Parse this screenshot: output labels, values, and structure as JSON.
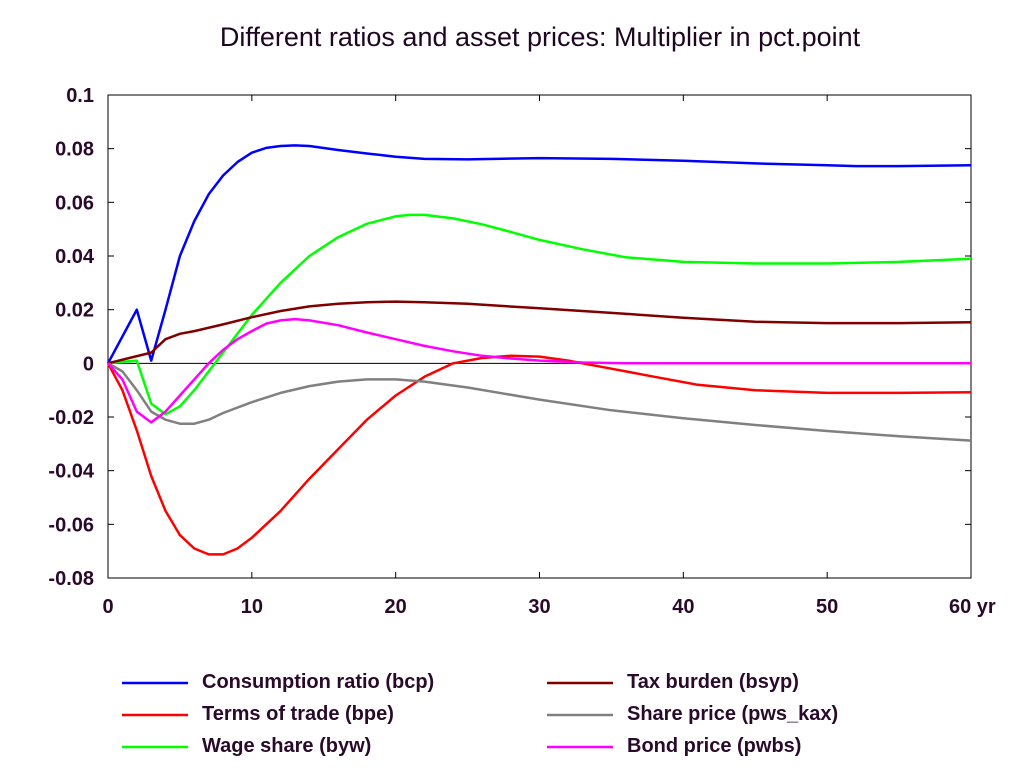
{
  "chart_data": {
    "type": "line",
    "title": "Different ratios and asset prices: Multiplier in pct.point",
    "xlabel": "",
    "ylabel": "",
    "x_unit": "yr",
    "xlim": [
      0,
      60
    ],
    "ylim": [
      -0.08,
      0.1
    ],
    "x_ticks": [
      0,
      10,
      20,
      30,
      40,
      50,
      60
    ],
    "x_tick_labels": [
      "0",
      "10",
      "20",
      "30",
      "40",
      "50",
      "60 yr"
    ],
    "y_ticks": [
      0.1,
      0.08,
      0.06,
      0.04,
      0.02,
      0,
      -0.02,
      -0.04,
      -0.06,
      -0.08
    ],
    "y_tick_labels": [
      "0.1",
      "0.08",
      "0.06",
      "0.04",
      "0.02",
      "0",
      "-0.02",
      "-0.04",
      "-0.06",
      "-0.08"
    ],
    "grid": false,
    "zero_line": true,
    "legend_position": "bottom",
    "series": [
      {
        "name": "Consumption ratio (bcp)",
        "color": "#0000ff",
        "points": [
          [
            0,
            0
          ],
          [
            2,
            0.02
          ],
          [
            3,
            0.001
          ],
          [
            4,
            0.02
          ],
          [
            5,
            0.04
          ],
          [
            6,
            0.053
          ],
          [
            7,
            0.063
          ],
          [
            8,
            0.07
          ],
          [
            9,
            0.075
          ],
          [
            10,
            0.0785
          ],
          [
            11,
            0.0803
          ],
          [
            12,
            0.081
          ],
          [
            13,
            0.0812
          ],
          [
            14,
            0.081
          ],
          [
            16,
            0.0795
          ],
          [
            18,
            0.0782
          ],
          [
            20,
            0.077
          ],
          [
            22,
            0.0762
          ],
          [
            25,
            0.076
          ],
          [
            30,
            0.0765
          ],
          [
            35,
            0.0762
          ],
          [
            40,
            0.0755
          ],
          [
            45,
            0.0745
          ],
          [
            50,
            0.0738
          ],
          [
            52,
            0.0735
          ],
          [
            55,
            0.0735
          ],
          [
            60,
            0.0738
          ]
        ]
      },
      {
        "name": "Terms of trade (bpe)",
        "color": "#ff0000",
        "points": [
          [
            0,
            0
          ],
          [
            1,
            -0.01
          ],
          [
            2,
            -0.025
          ],
          [
            3,
            -0.042
          ],
          [
            4,
            -0.055
          ],
          [
            5,
            -0.064
          ],
          [
            6,
            -0.069
          ],
          [
            7,
            -0.0712
          ],
          [
            8,
            -0.0712
          ],
          [
            9,
            -0.069
          ],
          [
            10,
            -0.065
          ],
          [
            12,
            -0.055
          ],
          [
            14,
            -0.043
          ],
          [
            16,
            -0.032
          ],
          [
            18,
            -0.021
          ],
          [
            20,
            -0.012
          ],
          [
            22,
            -0.005
          ],
          [
            24,
            0
          ],
          [
            26,
            0.002
          ],
          [
            28,
            0.0028
          ],
          [
            30,
            0.0025
          ],
          [
            32,
            0.001
          ],
          [
            35,
            -0.002
          ],
          [
            38,
            -0.005
          ],
          [
            41,
            -0.008
          ],
          [
            45,
            -0.01
          ],
          [
            50,
            -0.011
          ],
          [
            55,
            -0.011
          ],
          [
            60,
            -0.0108
          ]
        ]
      },
      {
        "name": "Wage share (byw)",
        "color": "#00ff00",
        "points": [
          [
            0,
            0
          ],
          [
            2,
            0.001
          ],
          [
            3,
            -0.015
          ],
          [
            4,
            -0.019
          ],
          [
            5,
            -0.016
          ],
          [
            6,
            -0.01
          ],
          [
            7,
            -0.003
          ],
          [
            8,
            0.004
          ],
          [
            9,
            0.011
          ],
          [
            10,
            0.018
          ],
          [
            12,
            0.03
          ],
          [
            14,
            0.04
          ],
          [
            16,
            0.047
          ],
          [
            18,
            0.052
          ],
          [
            20,
            0.0548
          ],
          [
            21,
            0.0553
          ],
          [
            22,
            0.0553
          ],
          [
            24,
            0.054
          ],
          [
            26,
            0.0518
          ],
          [
            28,
            0.049
          ],
          [
            30,
            0.046
          ],
          [
            33,
            0.0425
          ],
          [
            36,
            0.0395
          ],
          [
            40,
            0.0378
          ],
          [
            45,
            0.0372
          ],
          [
            50,
            0.0372
          ],
          [
            55,
            0.0378
          ],
          [
            60,
            0.039
          ]
        ]
      },
      {
        "name": "Tax burden (bsyp)",
        "color": "#800000",
        "points": [
          [
            0,
            0
          ],
          [
            3,
            0.004
          ],
          [
            4,
            0.009
          ],
          [
            5,
            0.011
          ],
          [
            6,
            0.012
          ],
          [
            8,
            0.0145
          ],
          [
            10,
            0.0172
          ],
          [
            12,
            0.0195
          ],
          [
            14,
            0.0212
          ],
          [
            16,
            0.0222
          ],
          [
            18,
            0.0228
          ],
          [
            20,
            0.023
          ],
          [
            22,
            0.0228
          ],
          [
            25,
            0.0222
          ],
          [
            30,
            0.0205
          ],
          [
            35,
            0.0188
          ],
          [
            40,
            0.017
          ],
          [
            45,
            0.0155
          ],
          [
            50,
            0.015
          ],
          [
            55,
            0.015
          ],
          [
            60,
            0.0153
          ]
        ]
      },
      {
        "name": "Share price (pws_kax)",
        "color": "#808080",
        "points": [
          [
            0,
            0
          ],
          [
            1,
            -0.003
          ],
          [
            2,
            -0.01
          ],
          [
            3,
            -0.018
          ],
          [
            4,
            -0.021
          ],
          [
            5,
            -0.0225
          ],
          [
            6,
            -0.0225
          ],
          [
            7,
            -0.021
          ],
          [
            8,
            -0.0185
          ],
          [
            10,
            -0.0145
          ],
          [
            12,
            -0.011
          ],
          [
            14,
            -0.0085
          ],
          [
            16,
            -0.0068
          ],
          [
            18,
            -0.006
          ],
          [
            20,
            -0.006
          ],
          [
            22,
            -0.0068
          ],
          [
            25,
            -0.009
          ],
          [
            30,
            -0.0135
          ],
          [
            35,
            -0.0175
          ],
          [
            40,
            -0.0205
          ],
          [
            45,
            -0.023
          ],
          [
            50,
            -0.0252
          ],
          [
            55,
            -0.0272
          ],
          [
            60,
            -0.0288
          ]
        ]
      },
      {
        "name": "Bond price (pwbs)",
        "color": "#ff00ff",
        "points": [
          [
            0,
            0
          ],
          [
            1,
            -0.006
          ],
          [
            2,
            -0.018
          ],
          [
            3,
            -0.022
          ],
          [
            4,
            -0.018
          ],
          [
            5,
            -0.012
          ],
          [
            6,
            -0.006
          ],
          [
            7,
            0
          ],
          [
            8,
            0.005
          ],
          [
            9,
            0.009
          ],
          [
            10,
            0.012
          ],
          [
            11,
            0.0148
          ],
          [
            12,
            0.016
          ],
          [
            13,
            0.0165
          ],
          [
            14,
            0.016
          ],
          [
            16,
            0.0142
          ],
          [
            18,
            0.0115
          ],
          [
            20,
            0.009
          ],
          [
            22,
            0.0065
          ],
          [
            24,
            0.0045
          ],
          [
            26,
            0.0028
          ],
          [
            28,
            0.0018
          ],
          [
            30,
            0.001
          ],
          [
            33,
            0.0003
          ],
          [
            36,
            0
          ],
          [
            40,
            0
          ],
          [
            50,
            0
          ],
          [
            60,
            0
          ]
        ]
      }
    ]
  }
}
